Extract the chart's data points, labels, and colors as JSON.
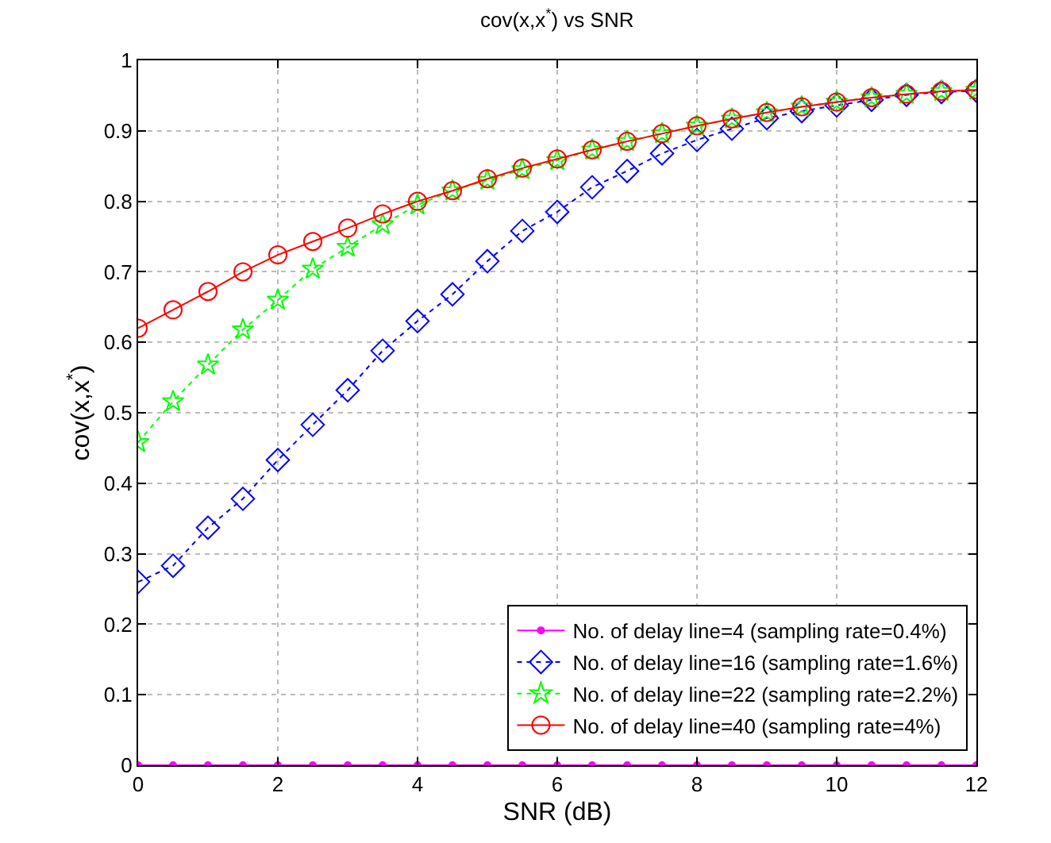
{
  "chart_data": {
    "type": "line",
    "title": "cov(x,x$^{*}$) vs SNR",
    "xlabel": "SNR (dB)",
    "ylabel": "cov(x,x$^{*}$)",
    "x": [
      0,
      0.5,
      1,
      1.5,
      2,
      2.5,
      3,
      3.5,
      4,
      4.5,
      5,
      5.5,
      6,
      6.5,
      7,
      7.5,
      8,
      8.5,
      9,
      9.5,
      10,
      10.5,
      11,
      11.5,
      12
    ],
    "xlim": [
      0,
      12
    ],
    "xticks": [
      0,
      2,
      4,
      6,
      8,
      10,
      12
    ],
    "ylim": [
      0,
      1
    ],
    "yticks": [
      0,
      0.1,
      0.2,
      0.3,
      0.4,
      0.5,
      0.6,
      0.7,
      0.8,
      0.9,
      1
    ],
    "grid": true,
    "legend": "bottom right",
    "series": [
      {
        "name": "No. of delay line=4 (sampling rate=0.4%)",
        "color": "#ff00ff",
        "marker": "circle",
        "line_style": "solid",
        "values": [
          0,
          0,
          0,
          0,
          0,
          0,
          0,
          0,
          0,
          0,
          0,
          0,
          0,
          0,
          0,
          0,
          0,
          0,
          0,
          0,
          0,
          0,
          0,
          0,
          0
        ]
      },
      {
        "name": "No. of delay line=16 (sampling rate=1.6%)",
        "color": "#0000ff",
        "marker": "diamond",
        "line_style": "dotted",
        "values": [
          0.26,
          0.283,
          0.337,
          0.378,
          0.433,
          0.483,
          0.532,
          0.588,
          0.63,
          0.668,
          0.715,
          0.758,
          0.785,
          0.82,
          0.843,
          0.868,
          0.887,
          0.903,
          0.918,
          0.928,
          0.936,
          0.944,
          0.951,
          0.955,
          0.957
        ]
      },
      {
        "name": "No. of delay line=22 (sampling rate=2.2%)",
        "color": "#00ff00",
        "marker": "star",
        "line_style": "dotted",
        "values": [
          0.458,
          0.516,
          0.568,
          0.618,
          0.66,
          0.704,
          0.735,
          0.767,
          0.795,
          0.815,
          0.83,
          0.845,
          0.858,
          0.873,
          0.885,
          0.896,
          0.907,
          0.917,
          0.926,
          0.934,
          0.941,
          0.947,
          0.952,
          0.956,
          0.958
        ]
      },
      {
        "name": "No. of delay line=40 (sampling rate=4%)",
        "color": "#ff0000",
        "marker": "circle-open",
        "line_style": "solid",
        "values": [
          0.62,
          0.646,
          0.672,
          0.7,
          0.724,
          0.743,
          0.762,
          0.782,
          0.8,
          0.815,
          0.832,
          0.847,
          0.86,
          0.873,
          0.885,
          0.896,
          0.907,
          0.917,
          0.926,
          0.934,
          0.941,
          0.947,
          0.952,
          0.956,
          0.958
        ]
      }
    ]
  }
}
